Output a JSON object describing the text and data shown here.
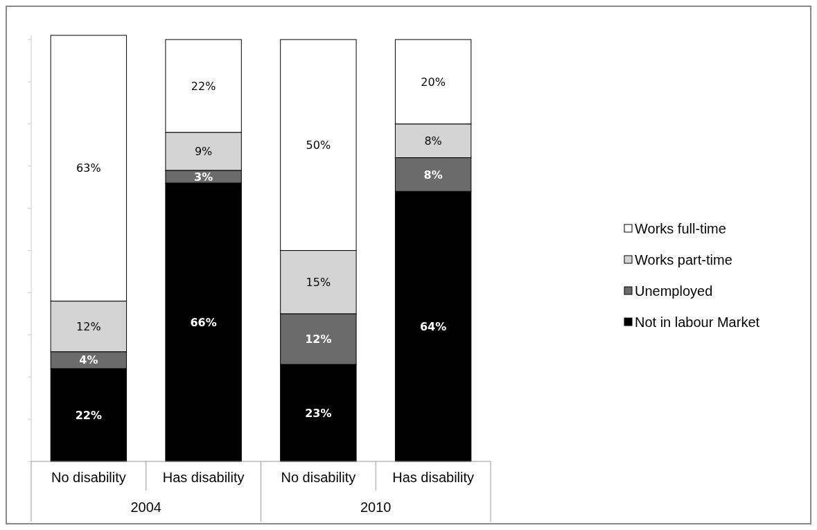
{
  "chart_data": {
    "type": "bar",
    "stacked": true,
    "categories": [
      "No disability",
      "Has disability",
      "No disability",
      "Has disability"
    ],
    "series": [
      {
        "name": "Not in labour Market",
        "color": "#000000",
        "values": [
          22,
          66,
          23,
          64
        ],
        "value_labels": [
          "22%",
          "66%",
          "23%",
          "64%"
        ]
      },
      {
        "name": "Unemployed",
        "color": "#6b6b6b",
        "values": [
          4,
          3,
          12,
          8
        ],
        "value_labels": [
          "4%",
          "3%",
          "12%",
          "8%"
        ]
      },
      {
        "name": "Works part-time",
        "color": "#d4d4d4",
        "values": [
          12,
          9,
          15,
          8
        ],
        "value_labels": [
          "12%",
          "9%",
          "15%",
          "8%"
        ]
      },
      {
        "name": "Works full-time",
        "color": "#ffffff",
        "values": [
          63,
          22,
          50,
          20
        ],
        "value_labels": [
          "63%",
          "22%",
          "50%",
          "20%"
        ]
      }
    ],
    "ylim": [
      0,
      101
    ],
    "yticks": [
      {
        "value": 0,
        "label": null
      },
      {
        "value": 10,
        "label": null
      },
      {
        "value": 20,
        "label": null
      },
      {
        "value": 30,
        "label": null
      },
      {
        "value": 40,
        "label": null
      },
      {
        "value": 50,
        "label": null
      },
      {
        "value": 60,
        "label": null
      },
      {
        "value": 70,
        "label": null
      },
      {
        "value": 80,
        "label": null
      },
      {
        "value": 90,
        "label": null
      },
      {
        "value": 100,
        "label": null
      }
    ],
    "tick_labels": "x",
    "legend": "right",
    "grid": false,
    "annotations": [
      "2004",
      "2010"
    ]
  }
}
